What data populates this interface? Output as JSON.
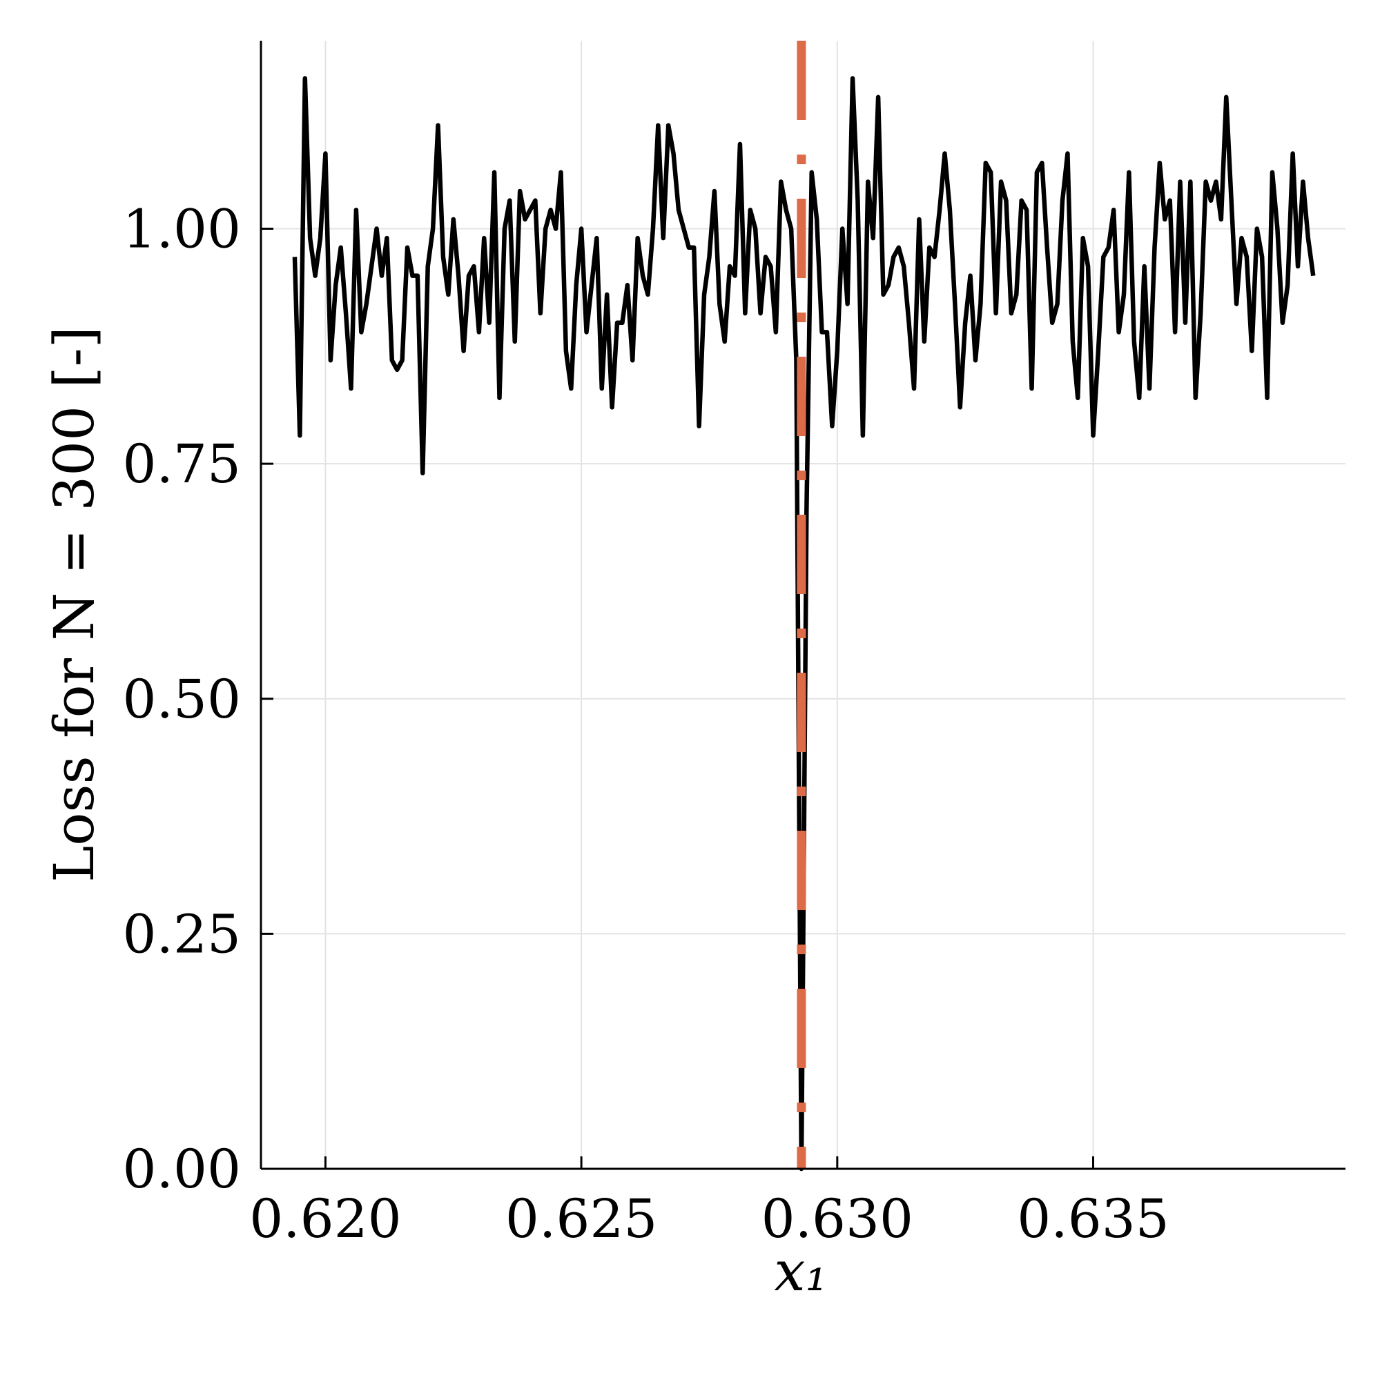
{
  "chart_data": {
    "type": "line",
    "xlabel": "x₁",
    "ylabel": "Loss for N = 300 [-]",
    "x": [
      0.6194,
      0.6195,
      0.6196,
      0.6197,
      0.6198,
      0.6199,
      0.62,
      0.6201,
      0.6202,
      0.6203,
      0.6204,
      0.6205,
      0.6206,
      0.6207,
      0.6208,
      0.6209,
      0.621,
      0.6211,
      0.6212,
      0.6213,
      0.6214,
      0.6215,
      0.6216,
      0.6217,
      0.6218,
      0.6219,
      0.622,
      0.6221,
      0.6222,
      0.6223,
      0.6224,
      0.6225,
      0.6226,
      0.6227,
      0.6228,
      0.6229,
      0.623,
      0.6231,
      0.6232,
      0.6233,
      0.6234,
      0.6235,
      0.6236,
      0.6237,
      0.6238,
      0.6239,
      0.624,
      0.6241,
      0.6242,
      0.6243,
      0.6244,
      0.6245,
      0.6246,
      0.6247,
      0.6248,
      0.6249,
      0.625,
      0.6251,
      0.6252,
      0.6253,
      0.6254,
      0.6255,
      0.6256,
      0.6257,
      0.6258,
      0.6259,
      0.626,
      0.6261,
      0.6262,
      0.6263,
      0.6264,
      0.6265,
      0.6266,
      0.6267,
      0.6268,
      0.6269,
      0.627,
      0.6271,
      0.6272,
      0.6273,
      0.6274,
      0.6275,
      0.6276,
      0.6277,
      0.6278,
      0.6279,
      0.628,
      0.6281,
      0.6282,
      0.6283,
      0.6284,
      0.6285,
      0.6286,
      0.6287,
      0.6288,
      0.6289,
      0.629,
      0.6291,
      0.6292,
      0.6293,
      0.6294,
      0.6295,
      0.6296,
      0.6297,
      0.6298,
      0.6299,
      0.63,
      0.6301,
      0.6302,
      0.6303,
      0.6304,
      0.6305,
      0.6306,
      0.6307,
      0.6308,
      0.6309,
      0.631,
      0.6311,
      0.6312,
      0.6313,
      0.6314,
      0.6315,
      0.6316,
      0.6317,
      0.6318,
      0.6319,
      0.632,
      0.6321,
      0.6322,
      0.6323,
      0.6324,
      0.6325,
      0.6326,
      0.6327,
      0.6328,
      0.6329,
      0.633,
      0.6331,
      0.6332,
      0.6333,
      0.6334,
      0.6335,
      0.6336,
      0.6337,
      0.6338,
      0.6339,
      0.634,
      0.6341,
      0.6342,
      0.6343,
      0.6344,
      0.6345,
      0.6346,
      0.6347,
      0.6348,
      0.6349,
      0.635,
      0.6351,
      0.6352,
      0.6353,
      0.6354,
      0.6355,
      0.6356,
      0.6357,
      0.6358,
      0.6359,
      0.636,
      0.6361,
      0.6362,
      0.6363,
      0.6364,
      0.6365,
      0.6366,
      0.6367,
      0.6368,
      0.6369,
      0.637,
      0.6371,
      0.6372,
      0.6373,
      0.6374,
      0.6375,
      0.6376,
      0.6377,
      0.6378,
      0.6379,
      0.638,
      0.6381,
      0.6382,
      0.6383,
      0.6384,
      0.6385,
      0.6386,
      0.6387,
      0.6388,
      0.6389,
      0.639,
      0.6391,
      0.6392,
      0.6393
    ],
    "series": [
      {
        "color": "#000000",
        "values": [
          0.97,
          0.78,
          1.16,
          0.99,
          0.95,
          0.99,
          1.08,
          0.86,
          0.94,
          0.98,
          0.91,
          0.83,
          1.02,
          0.89,
          0.92,
          0.96,
          1.0,
          0.95,
          0.99,
          0.86,
          0.85,
          0.86,
          0.98,
          0.95,
          0.95,
          0.74,
          0.96,
          1.0,
          1.11,
          0.97,
          0.93,
          1.01,
          0.95,
          0.87,
          0.95,
          0.96,
          0.89,
          0.99,
          0.9,
          1.06,
          0.82,
          1.0,
          1.03,
          0.88,
          1.04,
          1.01,
          1.02,
          1.03,
          0.91,
          1.0,
          1.02,
          1.0,
          1.06,
          0.87,
          0.83,
          0.94,
          1.0,
          0.89,
          0.94,
          0.99,
          0.83,
          0.93,
          0.81,
          0.9,
          0.9,
          0.94,
          0.86,
          0.99,
          0.95,
          0.93,
          1.0,
          1.11,
          0.99,
          1.11,
          1.08,
          1.02,
          1.0,
          0.98,
          0.98,
          0.79,
          0.93,
          0.97,
          1.04,
          0.92,
          0.88,
          0.96,
          0.95,
          1.09,
          0.91,
          1.02,
          1.0,
          0.91,
          0.97,
          0.96,
          0.89,
          1.05,
          1.02,
          1.0,
          0.86,
          0.0,
          0.7,
          1.06,
          1.01,
          0.89,
          0.89,
          0.79,
          0.87,
          1.0,
          0.92,
          1.16,
          1.03,
          0.78,
          1.05,
          0.99,
          1.14,
          0.93,
          0.94,
          0.97,
          0.98,
          0.96,
          0.9,
          0.83,
          1.01,
          0.88,
          0.98,
          0.97,
          1.02,
          1.08,
          1.02,
          0.92,
          0.81,
          0.9,
          0.95,
          0.86,
          0.92,
          1.07,
          1.06,
          0.91,
          1.05,
          1.03,
          0.91,
          0.93,
          1.03,
          1.02,
          0.83,
          1.06,
          1.07,
          0.98,
          0.9,
          0.92,
          1.03,
          1.08,
          0.88,
          0.82,
          0.99,
          0.96,
          0.78,
          0.87,
          0.97,
          0.98,
          1.02,
          0.89,
          0.93,
          1.06,
          0.88,
          0.82,
          0.96,
          0.83,
          0.98,
          1.07,
          1.01,
          1.03,
          0.89,
          1.05,
          0.9,
          1.05,
          0.82,
          0.91,
          1.05,
          1.03,
          1.05,
          1.01,
          1.14,
          1.03,
          0.92,
          0.99,
          0.97,
          0.87,
          1.0,
          0.97,
          0.82,
          1.06,
          1.0,
          0.9,
          0.94,
          1.08,
          0.96,
          1.05,
          0.99,
          0.95
        ]
      }
    ],
    "vline_x": 0.6293,
    "vline_color": "#dd6b48",
    "xlim": [
      0.61874,
      0.63993
    ],
    "ylim": [
      0,
      1.2
    ],
    "xticks": [
      {
        "value": 0.62,
        "label": "0.620"
      },
      {
        "value": 0.625,
        "label": "0.625"
      },
      {
        "value": 0.63,
        "label": "0.630"
      },
      {
        "value": 0.635,
        "label": "0.635"
      }
    ],
    "yticks": [
      {
        "value": 0,
        "label": "0.00"
      },
      {
        "value": 0.25,
        "label": "0.25"
      },
      {
        "value": 0.5,
        "label": "0.50"
      },
      {
        "value": 0.75,
        "label": "0.75"
      },
      {
        "value": 1,
        "label": "1.00"
      }
    ],
    "grid": true
  }
}
